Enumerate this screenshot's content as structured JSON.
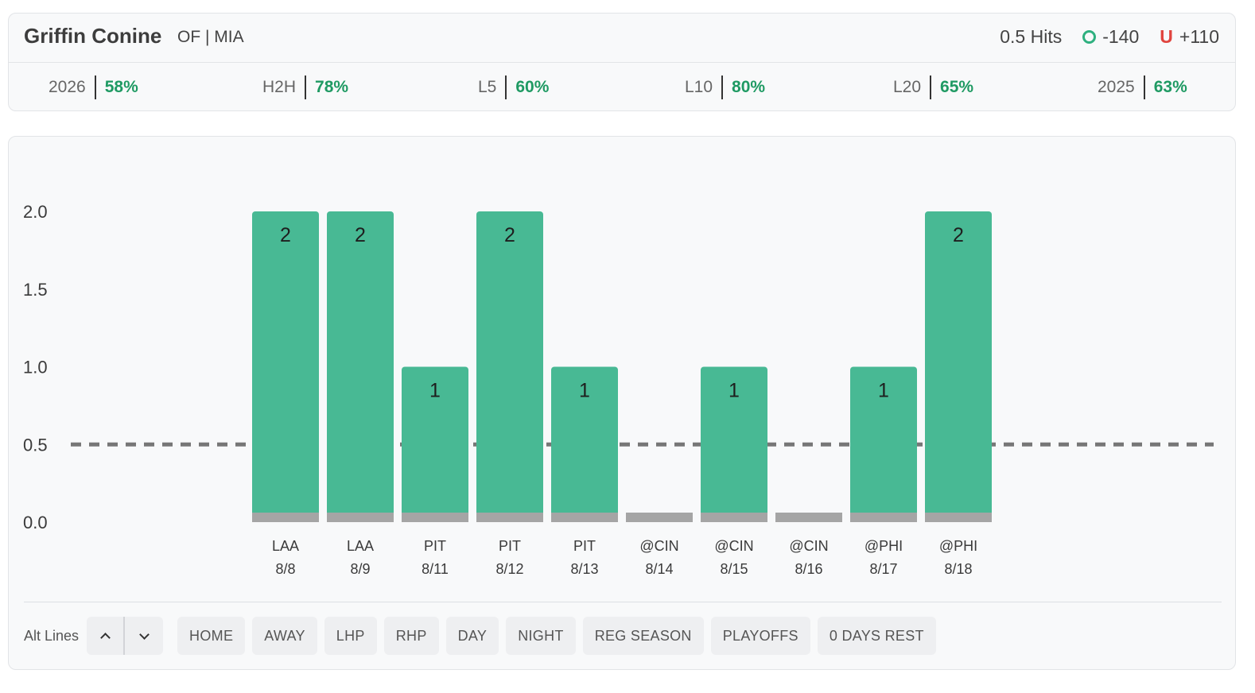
{
  "player": {
    "name": "Griffin Conine",
    "meta": "OF | MIA"
  },
  "line": {
    "prop": "0.5 Hits",
    "over": {
      "icon": "over-circle-icon",
      "odds": "-140",
      "color": "#2eb07f"
    },
    "under": {
      "icon": "under-u-icon",
      "letter": "U",
      "odds": "+110",
      "color": "#e0443e"
    }
  },
  "stats": [
    {
      "label": "2026",
      "value": "58%"
    },
    {
      "label": "H2H",
      "value": "78%"
    },
    {
      "label": "L5",
      "value": "60%"
    },
    {
      "label": "L10",
      "value": "80%"
    },
    {
      "label": "L20",
      "value": "65%"
    },
    {
      "label": "2025",
      "value": "63%"
    }
  ],
  "chart_data": {
    "type": "bar",
    "categories": [
      {
        "opponent": "LAA",
        "date": "8/8"
      },
      {
        "opponent": "LAA",
        "date": "8/9"
      },
      {
        "opponent": "PIT",
        "date": "8/11"
      },
      {
        "opponent": "PIT",
        "date": "8/12"
      },
      {
        "opponent": "PIT",
        "date": "8/13"
      },
      {
        "opponent": "@CIN",
        "date": "8/14"
      },
      {
        "opponent": "@CIN",
        "date": "8/15"
      },
      {
        "opponent": "@CIN",
        "date": "8/16"
      },
      {
        "opponent": "@PHI",
        "date": "8/17"
      },
      {
        "opponent": "@PHI",
        "date": "8/18"
      }
    ],
    "values": [
      2,
      2,
      1,
      2,
      1,
      0,
      1,
      0,
      1,
      2
    ],
    "line": 0.5,
    "ylim": [
      0,
      2
    ],
    "yticks": [
      "0.0",
      "0.5",
      "1.0",
      "1.5",
      "2.0"
    ],
    "colors": {
      "hit": "#48b994",
      "base": "#a5a5a5",
      "line": "#777777"
    }
  },
  "toolbar": {
    "alt_label": "Alt Lines",
    "up_icon": "chevron-up-icon",
    "down_icon": "chevron-down-icon",
    "filters": [
      "HOME",
      "AWAY",
      "LHP",
      "RHP",
      "DAY",
      "NIGHT",
      "REG SEASON",
      "PLAYOFFS",
      "0 DAYS REST"
    ]
  }
}
